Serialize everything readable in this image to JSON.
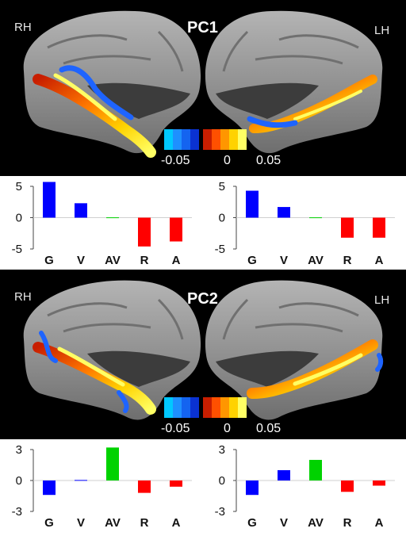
{
  "panels": [
    {
      "title": "PC1",
      "left_hemisphere_label": "RH",
      "right_hemisphere_label": "LH",
      "colorbar": {
        "min_label": "-0.05",
        "mid_label": "0",
        "max_label": "0.05",
        "negative_colors": [
          "#00c8ff",
          "#1e90ff",
          "#1464f0",
          "#0a32d2"
        ],
        "positive_colors": [
          "#c81e00",
          "#ff5000",
          "#ff9600",
          "#ffd200",
          "#ffff64"
        ]
      }
    },
    {
      "title": "PC2",
      "left_hemisphere_label": "RH",
      "right_hemisphere_label": "LH",
      "colorbar": {
        "min_label": "-0.05",
        "mid_label": "0",
        "max_label": "0.05",
        "negative_colors": [
          "#00c8ff",
          "#1e90ff",
          "#1464f0",
          "#0a32d2"
        ],
        "positive_colors": [
          "#c81e00",
          "#ff5000",
          "#ff9600",
          "#ffd200",
          "#ffff64"
        ]
      }
    }
  ],
  "chart_data": [
    {
      "type": "bar",
      "categories": [
        "G",
        "V",
        "AV",
        "R",
        "A"
      ],
      "values": [
        5.7,
        2.3,
        0.05,
        -4.6,
        -3.8
      ],
      "colors": [
        "#0000ff",
        "#0000ff",
        "#00d200",
        "#ff0000",
        "#ff0000"
      ],
      "ylim": [
        -5,
        5
      ],
      "yticks": [
        5,
        0,
        -5
      ]
    },
    {
      "type": "bar",
      "categories": [
        "G",
        "V",
        "AV",
        "R",
        "A"
      ],
      "values": [
        4.3,
        1.7,
        0.05,
        -3.2,
        -3.2
      ],
      "colors": [
        "#0000ff",
        "#0000ff",
        "#00d200",
        "#ff0000",
        "#ff0000"
      ],
      "ylim": [
        -5,
        5
      ],
      "yticks": [
        5,
        0,
        -5
      ]
    },
    {
      "type": "bar",
      "categories": [
        "G",
        "V",
        "AV",
        "R",
        "A"
      ],
      "values": [
        -1.4,
        0.05,
        3.2,
        -1.2,
        -0.6
      ],
      "colors": [
        "#0000ff",
        "#0000ff",
        "#00d200",
        "#ff0000",
        "#ff0000"
      ],
      "ylim": [
        -3,
        3
      ],
      "yticks": [
        3,
        0,
        -3
      ]
    },
    {
      "type": "bar",
      "categories": [
        "G",
        "V",
        "AV",
        "R",
        "A"
      ],
      "values": [
        -1.4,
        1.0,
        2.0,
        -1.1,
        -0.5
      ],
      "colors": [
        "#0000ff",
        "#0000ff",
        "#00d200",
        "#ff0000",
        "#ff0000"
      ],
      "ylim": [
        -3,
        3
      ],
      "yticks": [
        3,
        0,
        -3
      ]
    }
  ]
}
